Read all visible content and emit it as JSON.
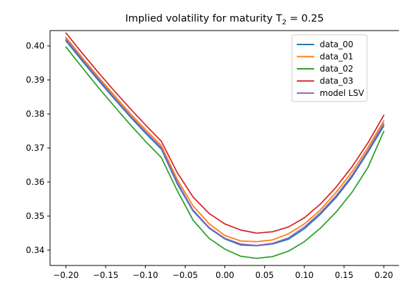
{
  "chart_data": {
    "type": "line",
    "title": "Implied volatility for maturity T",
    "title_sub": "2",
    "title_suffix": " = 0.25",
    "xlabel": "",
    "ylabel": "",
    "xlim": [
      -0.22,
      0.22
    ],
    "ylim": [
      0.3355,
      0.4045
    ],
    "grid": false,
    "legend_position": "upper right",
    "x_ticks": [
      -0.2,
      -0.15,
      -0.1,
      -0.05,
      0.0,
      0.05,
      0.1,
      0.15,
      0.2
    ],
    "x_tick_labels": [
      "−0.20",
      "−0.15",
      "−0.10",
      "−0.05",
      "0.00",
      "0.05",
      "0.10",
      "0.15",
      "0.20"
    ],
    "y_ticks": [
      0.34,
      0.35,
      0.36,
      0.37,
      0.38,
      0.39,
      0.4
    ],
    "y_tick_labels": [
      "0.34",
      "0.35",
      "0.36",
      "0.37",
      "0.38",
      "0.39",
      "0.40"
    ],
    "x": [
      -0.2,
      -0.18,
      -0.16,
      -0.14,
      -0.12,
      -0.1,
      -0.08,
      -0.06,
      -0.04,
      -0.02,
      0.0,
      0.02,
      0.04,
      0.06,
      0.08,
      0.1,
      0.12,
      0.14,
      0.16,
      0.18,
      0.2
    ],
    "series": [
      {
        "name": "data_00",
        "color": "#1f77b4",
        "values": [
          0.4015,
          0.3957,
          0.3901,
          0.3847,
          0.3794,
          0.3744,
          0.3697,
          0.3595,
          0.3515,
          0.3465,
          0.3433,
          0.3415,
          0.3413,
          0.3418,
          0.3432,
          0.3463,
          0.3505,
          0.3555,
          0.3615,
          0.3688,
          0.3765
        ]
      },
      {
        "name": "data_01",
        "color": "#ff7f0e",
        "values": [
          0.4025,
          0.3967,
          0.3911,
          0.3857,
          0.3804,
          0.3754,
          0.3707,
          0.3608,
          0.353,
          0.3478,
          0.3443,
          0.3427,
          0.3425,
          0.343,
          0.3448,
          0.3477,
          0.3518,
          0.357,
          0.363,
          0.3701,
          0.378
        ]
      },
      {
        "name": "data_02",
        "color": "#2ca02c",
        "values": [
          0.3997,
          0.3938,
          0.388,
          0.3825,
          0.3771,
          0.372,
          0.3672,
          0.3575,
          0.3488,
          0.3435,
          0.3403,
          0.3382,
          0.3376,
          0.3381,
          0.3397,
          0.3425,
          0.3464,
          0.3512,
          0.357,
          0.3643,
          0.3749
        ]
      },
      {
        "name": "data_03",
        "color": "#d62728",
        "values": [
          0.4038,
          0.398,
          0.3924,
          0.387,
          0.3818,
          0.3768,
          0.372,
          0.3628,
          0.3556,
          0.3508,
          0.3477,
          0.3459,
          0.345,
          0.3454,
          0.3468,
          0.3495,
          0.3535,
          0.3585,
          0.3645,
          0.3715,
          0.3796
        ]
      },
      {
        "name": "model LSV",
        "color": "#9467bd",
        "values": [
          0.402,
          0.3962,
          0.3906,
          0.3851,
          0.3798,
          0.3748,
          0.3701,
          0.36,
          0.3518,
          0.3467,
          0.3435,
          0.3418,
          0.3414,
          0.342,
          0.3436,
          0.3468,
          0.351,
          0.356,
          0.362,
          0.3693,
          0.3772
        ]
      }
    ]
  }
}
